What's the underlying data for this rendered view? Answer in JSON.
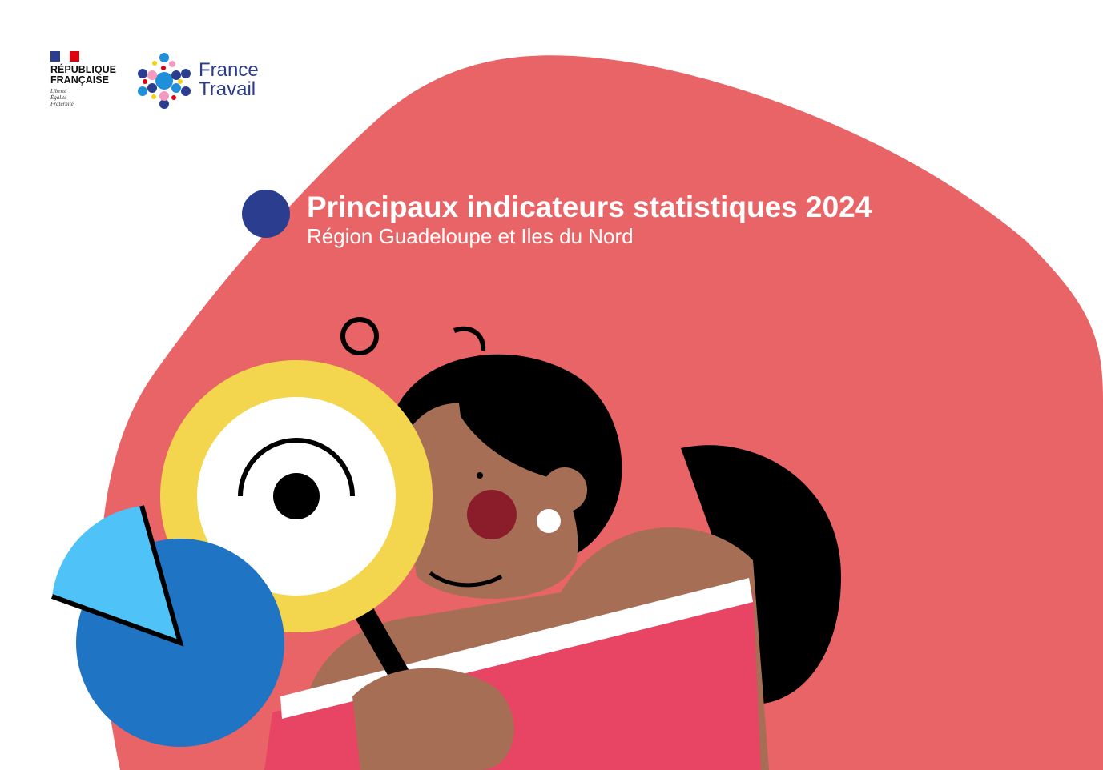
{
  "logos": {
    "republique": {
      "line1": "RÉPUBLIQUE",
      "line2": "FRANÇAISE",
      "motto": [
        "Liberté",
        "Égalité",
        "Fraternité"
      ]
    },
    "france_travail": {
      "line1": "France",
      "line2": "Travail"
    }
  },
  "cover": {
    "title": "Principaux indicateurs statistiques 2024",
    "subtitle": "Région Guadeloupe et Iles du Nord"
  },
  "colors": {
    "blob": "#E96466",
    "navy": "#2B3D8F",
    "yellow": "#F3D54E",
    "blue": "#1F74C4",
    "light_blue": "#4FC3F7",
    "skin": "#A66E55",
    "book": "#E84564"
  }
}
